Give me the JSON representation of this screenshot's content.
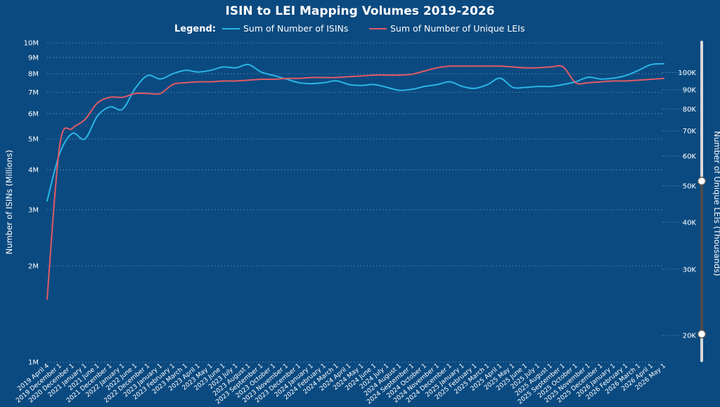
{
  "chart_data": {
    "type": "line",
    "title": "ISIN to LEI Mapping Volumes 2019-2026",
    "legend_title": "Legend:",
    "legend_placement": "top-center",
    "grid": true,
    "y_left": {
      "label": "Number of ISINs (Millions)",
      "scale": "log",
      "range": [
        1,
        10
      ],
      "ticks": [
        1,
        2,
        3,
        4,
        5,
        6,
        7,
        8,
        9,
        10
      ],
      "tick_labels": [
        "1M",
        "2M",
        "3M",
        "4M",
        "5M",
        "6M",
        "7M",
        "8M",
        "9M",
        "10M"
      ]
    },
    "y_right": {
      "label": "Number of Unique LEIs (Thousands)",
      "scale": "log",
      "range": [
        17,
        120
      ],
      "ticks": [
        20,
        30,
        40,
        50,
        60,
        70,
        80,
        90,
        100
      ],
      "tick_labels": [
        "20K",
        "30K",
        "40K",
        "50K",
        "60K",
        "70K",
        "80K",
        "90K",
        "100K"
      ]
    },
    "x": [
      "2019 April 4",
      "2019 December 1",
      "2020 December 1",
      "2021 January 1",
      "2021 June 1",
      "2021 December 1",
      "2022 January 1",
      "2022 June 1",
      "2022 December 1",
      "2023 January 1",
      "2023 February 1",
      "2023 March 1",
      "2023 April 1",
      "2023 May 1",
      "2023 June 1",
      "2023 July 1",
      "2023 August 1",
      "2023 September 1",
      "2023 October 1",
      "2023 November 1",
      "2023 December 1",
      "2024 January 1",
      "2024 February 1",
      "2024 March 1",
      "2024 April 1",
      "2024 May 1",
      "2024 June 1",
      "2024 July 1",
      "2024 August 1",
      "2024 September 1",
      "2024 October 1",
      "2024 November 1",
      "2024 December 1",
      "2025 January 1",
      "2025 February 1",
      "2025 March 1",
      "2025 April 1",
      "2025 May 1",
      "2025 June 1",
      "2025 July 1",
      "2025 August 1",
      "2025 September 1",
      "2025 October 1",
      "2025 November 1",
      "2025 December 1",
      "2026 January 1",
      "2026 February 1",
      "2026 March 1",
      "2026 April 1",
      "2026 May 1"
    ],
    "series": [
      {
        "name": "Sum of Number of ISINs",
        "axis": "left",
        "color": "#2ab5e6",
        "values": [
          3.2,
          4.5,
          5.2,
          5.0,
          5.9,
          6.3,
          6.2,
          7.2,
          7.9,
          7.7,
          8.0,
          8.2,
          8.1,
          8.2,
          8.4,
          8.35,
          8.55,
          8.1,
          7.9,
          7.7,
          7.5,
          7.45,
          7.5,
          7.6,
          7.4,
          7.35,
          7.4,
          7.25,
          7.1,
          7.15,
          7.3,
          7.4,
          7.55,
          7.3,
          7.2,
          7.4,
          7.75,
          7.25,
          7.25,
          7.3,
          7.3,
          7.4,
          7.55,
          7.8,
          7.7,
          7.75,
          7.9,
          8.2,
          8.55,
          8.6
        ]
      },
      {
        "name": "Sum of Number of Unique LEIs",
        "axis": "right",
        "color": "#e05a65",
        "values": [
          25,
          64,
          71,
          75,
          83,
          86,
          86,
          88,
          88,
          88,
          93,
          94,
          94.5,
          94.5,
          95,
          95,
          95.5,
          96,
          96,
          96.5,
          96.5,
          97,
          97,
          97,
          97.5,
          98,
          98.5,
          98.5,
          98.5,
          99,
          101,
          103,
          104,
          104,
          104,
          104,
          104,
          103.5,
          103,
          103,
          103.5,
          103.5,
          94,
          94,
          94.5,
          95,
          95,
          95.5,
          96,
          96.5
        ]
      }
    ]
  }
}
